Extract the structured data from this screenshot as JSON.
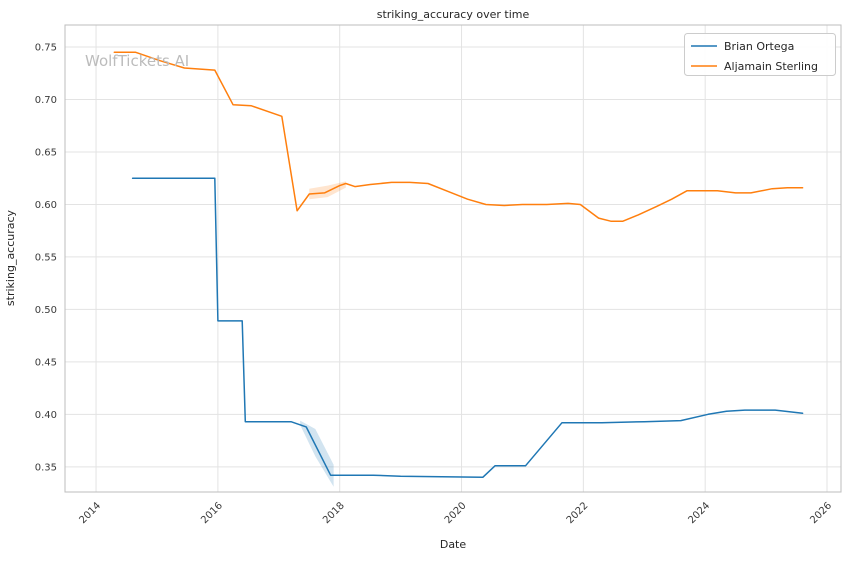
{
  "title": "striking_accuracy over time",
  "watermark": "WolfTickets AI",
  "xlabel": "Date",
  "ylabel": "striking_accuracy",
  "legend": {
    "position": "upper right",
    "entries": [
      {
        "label": "Brian Ortega",
        "color": "#1f77b4"
      },
      {
        "label": "Aljamain Sterling",
        "color": "#ff7f0e"
      }
    ]
  },
  "colors": {
    "grid": "#e3e3e3",
    "spine": "#bdbdbd",
    "background": "#ffffff"
  },
  "chart_data": {
    "type": "line",
    "title": "striking_accuracy over time",
    "xlabel": "Date",
    "ylabel": "striking_accuracy",
    "grid": true,
    "legend_position": "upper right",
    "xlim": [
      2013.49,
      2026.23
    ],
    "ylim": [
      0.326,
      0.771
    ],
    "x_ticks": [
      2014,
      2016,
      2018,
      2020,
      2022,
      2024,
      2026
    ],
    "y_ticks": [
      0.35,
      0.4,
      0.45,
      0.5,
      0.55,
      0.6,
      0.65,
      0.7,
      0.75
    ],
    "series": [
      {
        "name": "Brian Ortega",
        "color": "#1f77b4",
        "x": [
          2014.6,
          2015.95,
          2016.0,
          2016.4,
          2016.45,
          2017.2,
          2017.45,
          2017.85,
          2018.55,
          2019.0,
          2020.35,
          2020.55,
          2021.05,
          2021.65,
          2022.3,
          2023.0,
          2023.6,
          2024.05,
          2024.35,
          2024.65,
          2025.15,
          2025.6
        ],
        "y": [
          0.625,
          0.625,
          0.489,
          0.489,
          0.393,
          0.393,
          0.388,
          0.342,
          0.342,
          0.341,
          0.34,
          0.351,
          0.351,
          0.392,
          0.392,
          0.393,
          0.394,
          0.4,
          0.403,
          0.404,
          0.404,
          0.401
        ]
      },
      {
        "name": "Aljamain Sterling",
        "color": "#ff7f0e",
        "x": [
          2014.3,
          2014.65,
          2015.05,
          2015.45,
          2015.95,
          2016.25,
          2016.55,
          2017.05,
          2017.3,
          2017.5,
          2017.75,
          2018.0,
          2018.1,
          2018.25,
          2018.5,
          2018.85,
          2019.15,
          2019.45,
          2019.8,
          2020.1,
          2020.4,
          2020.7,
          2021.0,
          2021.4,
          2021.75,
          2021.95,
          2022.25,
          2022.45,
          2022.65,
          2022.9,
          2023.2,
          2023.45,
          2023.7,
          2024.0,
          2024.2,
          2024.5,
          2024.75,
          2025.1,
          2025.35,
          2025.6
        ],
        "y": [
          0.745,
          0.745,
          0.737,
          0.73,
          0.728,
          0.695,
          0.694,
          0.684,
          0.594,
          0.61,
          0.611,
          0.618,
          0.62,
          0.617,
          0.619,
          0.621,
          0.621,
          0.62,
          0.612,
          0.605,
          0.6,
          0.599,
          0.6,
          0.6,
          0.601,
          0.6,
          0.587,
          0.584,
          0.584,
          0.59,
          0.598,
          0.605,
          0.613,
          0.613,
          0.613,
          0.611,
          0.611,
          0.615,
          0.616,
          0.616
        ]
      }
    ],
    "bands": [
      {
        "series": "Brian Ortega",
        "color": "#1f77b4",
        "opacity": 0.2,
        "x": [
          2017.35,
          2017.6,
          2017.9
        ],
        "upper": [
          0.394,
          0.386,
          0.352
        ],
        "lower": [
          0.39,
          0.36,
          0.331
        ]
      },
      {
        "series": "Aljamain Sterling",
        "color": "#ff7f0e",
        "opacity": 0.2,
        "x": [
          2017.5,
          2017.8,
          2018.1
        ],
        "upper": [
          0.615,
          0.618,
          0.622
        ],
        "lower": [
          0.605,
          0.607,
          0.616
        ]
      }
    ]
  }
}
